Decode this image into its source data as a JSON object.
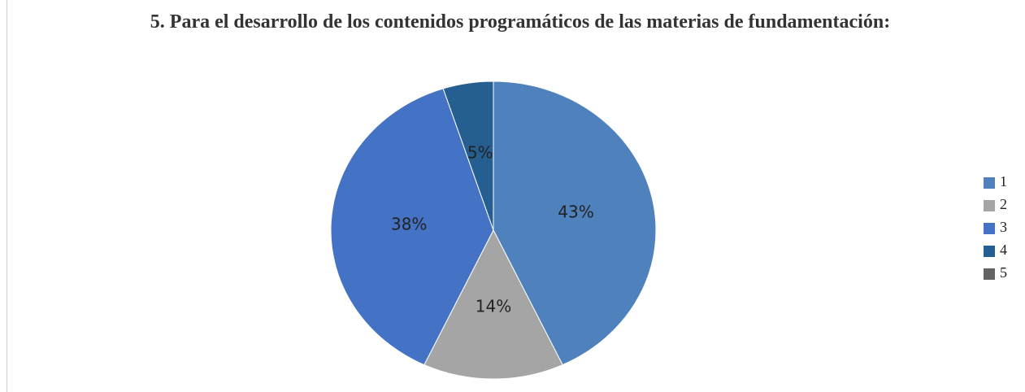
{
  "chart_data": {
    "type": "pie",
    "title": "5. Para el desarrollo de los contenidos programáticos de las materias de fundamentación:",
    "categories": [
      "1",
      "2",
      "3",
      "4",
      "5"
    ],
    "values": [
      43,
      14,
      38,
      5,
      0
    ],
    "value_labels": [
      "43%",
      "14%",
      "38%",
      "5%",
      null
    ],
    "colors": [
      "#4f81bd",
      "#a5a5a5",
      "#4472c4",
      "#255e91",
      "#636363"
    ],
    "legend": "right"
  }
}
